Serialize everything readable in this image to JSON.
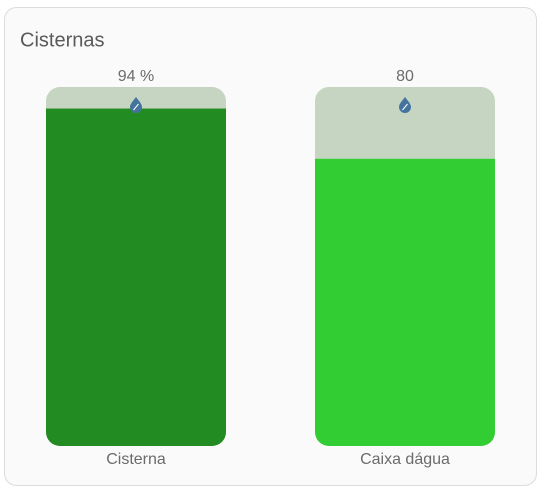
{
  "card": {
    "title": "Cisternas",
    "range": [
      0,
      100
    ],
    "gauges": [
      {
        "name": "Cisterna",
        "value": 94,
        "value_label": "94 %",
        "color": "#228b22"
      },
      {
        "name": "Caixa dágua",
        "value": 80,
        "value_label": "80",
        "color": "#32cd32"
      }
    ]
  }
}
